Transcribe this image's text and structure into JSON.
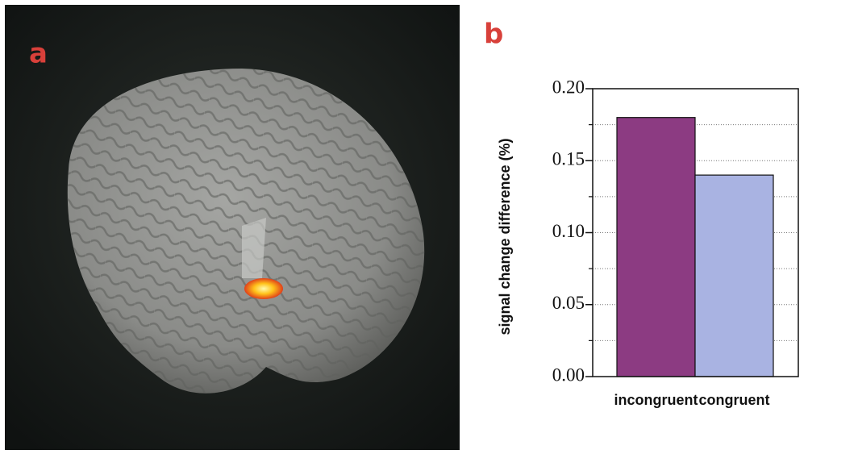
{
  "figure": {
    "panel_a_label": "a",
    "panel_b_label": "b"
  },
  "chart_data": {
    "type": "bar",
    "ylabel": "signal change difference (%)",
    "categories": [
      "incongruent",
      "congruent"
    ],
    "values": [
      0.18,
      0.14
    ],
    "colors": [
      "#8c3b82",
      "#a9b3e2"
    ],
    "ylim": [
      0,
      0.2
    ],
    "yticks": [
      {
        "value": 0,
        "label": "0.00"
      },
      {
        "value": 0.05,
        "label": "0.05"
      },
      {
        "value": 0.1,
        "label": "0.10"
      },
      {
        "value": 0.15,
        "label": "0.15"
      },
      {
        "value": 0.2,
        "label": "0.20"
      }
    ],
    "minor_yticks": [
      0.025,
      0.075,
      0.125,
      0.175
    ],
    "grid": true
  }
}
